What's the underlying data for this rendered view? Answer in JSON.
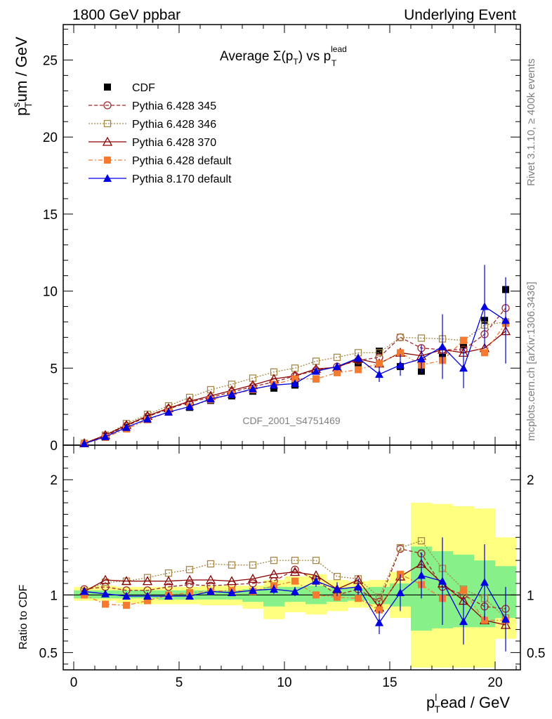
{
  "header": {
    "left": "1800 GeV ppbar",
    "right": "Underlying Event"
  },
  "side_labels": {
    "top": "Rivet 3.1.10, ≥ 400k events",
    "bottom": "mcplots.cern.ch [arXiv:1306.3436]"
  },
  "watermark": "CDF_2001_S4751469",
  "chart_data": [
    {
      "type": "line",
      "panel": "main",
      "title": "Average Σ(p_T) vs p_T^lead",
      "title_parts": {
        "pre": "Average Σ(p",
        "sub1": "T",
        "mid": ") vs p",
        "sup": "lead",
        "sub2": "T"
      },
      "ylabel": "p_T^sum / GeV",
      "ylabel_parts": {
        "p": "p",
        "sup": "s",
        "sub": "T",
        "rest": "um / GeV"
      },
      "xlim": [
        -0.5,
        21.2
      ],
      "ylim": [
        0,
        27.3
      ],
      "yticks": [
        0,
        5,
        10,
        15,
        20,
        25
      ],
      "legend": {
        "position": "top-left"
      },
      "series": [
        {
          "name": "CDF",
          "color": "#000000",
          "marker": "square-filled",
          "line": "none",
          "x": [
            0.5,
            1.5,
            2.5,
            3.5,
            4.5,
            5.5,
            6.5,
            7.5,
            8.5,
            9.5,
            10.5,
            11.5,
            12.5,
            13.5,
            14.5,
            15.5,
            16.5,
            17.5,
            18.5,
            19.5,
            20.5
          ],
          "y": [
            0.1,
            0.55,
            1.15,
            1.75,
            2.15,
            2.45,
            2.9,
            3.2,
            3.5,
            3.7,
            3.9,
            4.3,
            4.8,
            5.3,
            6.1,
            5.1,
            4.8,
            5.7,
            6.5,
            8.1,
            10.1
          ]
        },
        {
          "name": "Pythia 6.428 345",
          "color": "#a0282e",
          "marker": "circle-open",
          "line": "dashed",
          "x": [
            0.5,
            1.5,
            2.5,
            3.5,
            4.5,
            5.5,
            6.5,
            7.5,
            8.5,
            9.5,
            10.5,
            11.5,
            12.5,
            13.5,
            14.5,
            15.5,
            16.5,
            17.5,
            18.5,
            19.5,
            20.5
          ],
          "y": [
            0.12,
            0.6,
            1.25,
            1.85,
            2.35,
            2.8,
            3.1,
            3.45,
            3.8,
            4.1,
            4.5,
            4.85,
            5.1,
            5.5,
            5.7,
            7.0,
            6.3,
            6.2,
            6.2,
            7.2,
            8.9
          ]
        },
        {
          "name": "Pythia 6.428 346",
          "color": "#a58745",
          "marker": "square-open",
          "line": "dotted",
          "x": [
            0.5,
            1.5,
            2.5,
            3.5,
            4.5,
            5.5,
            6.5,
            7.5,
            8.5,
            9.5,
            10.5,
            11.5,
            12.5,
            13.5,
            14.5,
            15.5,
            16.5,
            17.5,
            18.5,
            19.5,
            20.5
          ],
          "y": [
            0.12,
            0.65,
            1.4,
            2.0,
            2.55,
            3.1,
            3.6,
            3.95,
            4.35,
            4.75,
            5.0,
            5.45,
            5.7,
            6.0,
            6.0,
            7.0,
            6.95,
            6.9,
            6.8,
            7.8,
            8.0
          ]
        },
        {
          "name": "Pythia 6.428 370",
          "color": "#8b0000",
          "marker": "triangle-open",
          "line": "solid",
          "x": [
            0.5,
            1.5,
            2.5,
            3.5,
            4.5,
            5.5,
            6.5,
            7.5,
            8.5,
            9.5,
            10.5,
            11.5,
            12.5,
            13.5,
            14.5,
            15.5,
            16.5,
            17.5,
            18.5,
            19.5,
            20.5
          ],
          "y": [
            0.12,
            0.65,
            1.3,
            1.9,
            2.4,
            2.85,
            3.2,
            3.55,
            3.9,
            4.3,
            4.5,
            4.95,
            5.05,
            5.6,
            5.3,
            6.0,
            5.8,
            6.2,
            6.0,
            6.3,
            7.4
          ]
        },
        {
          "name": "Pythia 6.428 default",
          "color": "#f47a30",
          "marker": "square-filled",
          "line": "dashdot",
          "x": [
            0.5,
            1.5,
            2.5,
            3.5,
            4.5,
            5.5,
            6.5,
            7.5,
            8.5,
            9.5,
            10.5,
            11.5,
            12.5,
            13.5,
            14.5,
            15.5,
            16.5,
            17.5,
            18.5,
            19.5,
            20.5
          ],
          "y": [
            0.1,
            0.5,
            1.05,
            1.65,
            2.15,
            2.5,
            2.95,
            3.3,
            3.6,
            3.95,
            4.3,
            4.3,
            4.7,
            4.9,
            5.3,
            6.0,
            5.2,
            5.5,
            6.8,
            6.0,
            7.9
          ]
        },
        {
          "name": "Pythia 8.170 default",
          "color": "#0000e0",
          "marker": "triangle-filled",
          "line": "solid",
          "x": [
            0.5,
            1.5,
            2.5,
            3.5,
            4.5,
            5.5,
            6.5,
            7.5,
            8.5,
            9.5,
            10.5,
            11.5,
            12.5,
            13.5,
            14.5,
            15.5,
            16.5,
            17.5,
            18.5,
            19.5,
            20.5
          ],
          "y": [
            0.1,
            0.55,
            1.15,
            1.7,
            2.15,
            2.5,
            3.0,
            3.3,
            3.65,
            3.9,
            4.0,
            4.8,
            5.1,
            5.65,
            4.6,
            5.2,
            5.6,
            6.4,
            5.0,
            9.0,
            8.1
          ],
          "err": [
            0.05,
            0.05,
            0.05,
            0.05,
            0.05,
            0.06,
            0.07,
            0.08,
            0.1,
            0.12,
            0.15,
            0.2,
            0.25,
            0.3,
            0.5,
            0.7,
            0.9,
            2.1,
            1.3,
            2.7,
            2.8
          ]
        }
      ]
    },
    {
      "type": "line",
      "panel": "ratio",
      "ylabel": "Ratio to CDF",
      "xlabel": "p_T^lead / GeV",
      "xlabel_parts": {
        "p": "p",
        "sup": "l",
        "sub": "T",
        "rest": "ead / GeV"
      },
      "xlim": [
        -0.5,
        21.2
      ],
      "ylim": [
        0.35,
        2.3
      ],
      "yticks": [
        0.5,
        1,
        2
      ],
      "xticks": [
        0,
        5,
        10,
        15,
        20
      ],
      "bands": {
        "x_edges": [
          0,
          1,
          2,
          3,
          4,
          5,
          6,
          7,
          8,
          9,
          10,
          11,
          12,
          13,
          14,
          15,
          16,
          17,
          18,
          19,
          20,
          21
        ],
        "yellow_lo": [
          0.95,
          0.95,
          0.93,
          0.92,
          0.92,
          0.92,
          0.91,
          0.91,
          0.88,
          0.79,
          0.85,
          0.83,
          0.86,
          0.89,
          0.87,
          0.8,
          0.37,
          0.37,
          0.37,
          0.37,
          0.62
        ],
        "yellow_hi": [
          1.07,
          1.08,
          1.07,
          1.07,
          1.07,
          1.07,
          1.08,
          1.08,
          1.08,
          1.13,
          1.16,
          1.18,
          1.13,
          1.12,
          1.13,
          1.2,
          1.8,
          1.79,
          1.77,
          1.75,
          1.5
        ],
        "green_lo": [
          0.97,
          0.97,
          0.97,
          0.97,
          0.96,
          0.96,
          0.96,
          0.96,
          0.94,
          0.9,
          0.94,
          0.92,
          0.94,
          0.95,
          0.92,
          0.9,
          0.69,
          0.71,
          0.72,
          0.72,
          0.8
        ],
        "green_hi": [
          1.04,
          1.04,
          1.04,
          1.04,
          1.04,
          1.04,
          1.04,
          1.04,
          1.05,
          1.07,
          1.07,
          1.08,
          1.06,
          1.06,
          1.07,
          1.1,
          1.42,
          1.38,
          1.35,
          1.3,
          1.25
        ],
        "colors": {
          "yellow": "#ffff80",
          "green": "#88f088"
        }
      },
      "series": [
        {
          "name": "Pythia 6.428 345",
          "color": "#a0282e",
          "marker": "circle-open",
          "line": "dashed",
          "x": [
            0.5,
            1.5,
            2.5,
            3.5,
            4.5,
            5.5,
            6.5,
            7.5,
            8.5,
            9.5,
            10.5,
            11.5,
            12.5,
            13.5,
            14.5,
            15.5,
            16.5,
            17.5,
            18.5,
            19.5,
            20.5
          ],
          "y": [
            1.05,
            1.07,
            1.04,
            1.04,
            1.07,
            1.09,
            1.08,
            1.09,
            1.1,
            1.12,
            1.22,
            1.13,
            1.0,
            1.05,
            0.94,
            1.4,
            1.36,
            1.07,
            1.0,
            0.9,
            0.88
          ]
        },
        {
          "name": "Pythia 6.428 346",
          "color": "#a58745",
          "marker": "square-open",
          "line": "dotted",
          "x": [
            0.5,
            1.5,
            2.5,
            3.5,
            4.5,
            5.5,
            6.5,
            7.5,
            8.5,
            9.5,
            10.5,
            11.5,
            12.5,
            13.5,
            14.5,
            15.5,
            16.5,
            17.5,
            18.5,
            19.5,
            20.5
          ],
          "y": [
            1.03,
            1.11,
            1.12,
            1.15,
            1.19,
            1.22,
            1.27,
            1.26,
            1.26,
            1.3,
            1.3,
            1.3,
            1.16,
            1.14,
            0.98,
            1.41,
            1.47,
            1.23,
            1.05,
            0.97,
            0.8
          ]
        },
        {
          "name": "Pythia 6.428 370",
          "color": "#8b0000",
          "marker": "triangle-open",
          "line": "solid",
          "x": [
            0.5,
            1.5,
            2.5,
            3.5,
            4.5,
            5.5,
            6.5,
            7.5,
            8.5,
            9.5,
            10.5,
            11.5,
            12.5,
            13.5,
            14.5,
            15.5,
            16.5,
            17.5,
            18.5,
            19.5,
            20.5
          ],
          "y": [
            1.03,
            1.13,
            1.12,
            1.12,
            1.12,
            1.13,
            1.13,
            1.12,
            1.14,
            1.18,
            1.2,
            1.17,
            1.05,
            1.13,
            0.89,
            1.16,
            1.27,
            1.1,
            0.95,
            0.78,
            0.74
          ]
        },
        {
          "name": "Pythia 6.428 default",
          "color": "#f47a30",
          "marker": "square-filled",
          "line": "dashdot",
          "x": [
            0.5,
            1.5,
            2.5,
            3.5,
            4.5,
            5.5,
            6.5,
            7.5,
            8.5,
            9.5,
            10.5,
            11.5,
            12.5,
            13.5,
            14.5,
            15.5,
            16.5,
            17.5,
            18.5,
            19.5,
            20.5
          ],
          "y": [
            1.0,
            0.92,
            0.91,
            0.95,
            1.0,
            1.02,
            1.03,
            1.04,
            1.03,
            1.08,
            1.12,
            1.0,
            0.98,
            0.97,
            0.87,
            1.18,
            1.09,
            0.97,
            1.04,
            0.78,
            0.78
          ]
        },
        {
          "name": "Pythia 8.170 default",
          "color": "#0000e0",
          "marker": "triangle-filled",
          "line": "solid",
          "x": [
            0.5,
            1.5,
            2.5,
            3.5,
            4.5,
            5.5,
            6.5,
            7.5,
            8.5,
            9.5,
            10.5,
            11.5,
            12.5,
            13.5,
            14.5,
            15.5,
            16.5,
            17.5,
            18.5,
            19.5,
            20.5
          ],
          "y": [
            1.03,
            1.01,
            0.99,
            0.99,
            0.99,
            0.99,
            1.03,
            1.02,
            1.04,
            1.05,
            1.03,
            1.12,
            1.05,
            1.07,
            0.76,
            1.02,
            1.17,
            1.12,
            0.77,
            1.11,
            0.79
          ],
          "err": [
            0.02,
            0.02,
            0.02,
            0.02,
            0.02,
            0.02,
            0.03,
            0.03,
            0.03,
            0.04,
            0.04,
            0.05,
            0.06,
            0.07,
            0.1,
            0.16,
            0.2,
            0.38,
            0.2,
            0.33,
            0.28
          ]
        }
      ]
    }
  ]
}
